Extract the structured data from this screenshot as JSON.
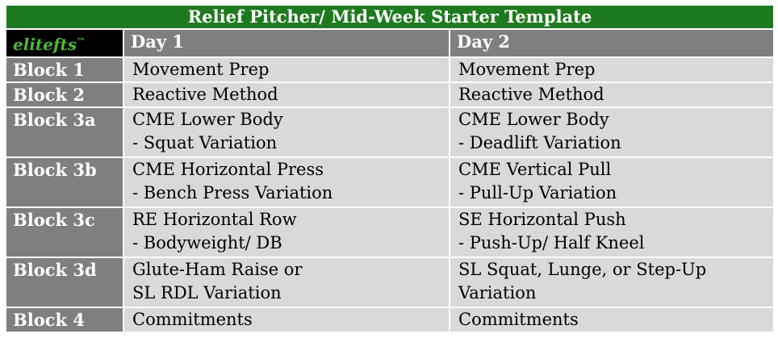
{
  "title": "Relief Pitcher/ Mid-Week Starter Template",
  "brand": {
    "name": "elitefts",
    "mark": "™"
  },
  "columns": [
    "Day 1",
    "Day 2"
  ],
  "rows": [
    {
      "block": "Block 1",
      "day1": [
        "Movement Prep"
      ],
      "day2": [
        "Movement Prep"
      ]
    },
    {
      "block": "Block 2",
      "day1": [
        "Reactive Method"
      ],
      "day2": [
        "Reactive Method"
      ]
    },
    {
      "block": "Block 3a",
      "day1": [
        "CME Lower Body",
        "- Squat Variation"
      ],
      "day2": [
        "CME Lower Body",
        "- Deadlift Variation"
      ]
    },
    {
      "block": "Block 3b",
      "day1": [
        "CME Horizontal Press",
        "- Bench Press Variation"
      ],
      "day2": [
        "CME Vertical Pull",
        "- Pull-Up Variation"
      ]
    },
    {
      "block": "Block 3c",
      "day1": [
        "RE Horizontal Row",
        "- Bodyweight/ DB"
      ],
      "day2": [
        "SE Horizontal Push",
        "- Push-Up/ Half Kneel"
      ]
    },
    {
      "block": "Block 3d",
      "day1": [
        "Glute-Ham Raise or",
        "SL RDL Variation"
      ],
      "day2": [
        "SL Squat, Lunge, or Step-Up",
        "Variation"
      ]
    },
    {
      "block": "Block 4",
      "day1": [
        "Commitments"
      ],
      "day2": [
        "Commitments"
      ]
    }
  ]
}
